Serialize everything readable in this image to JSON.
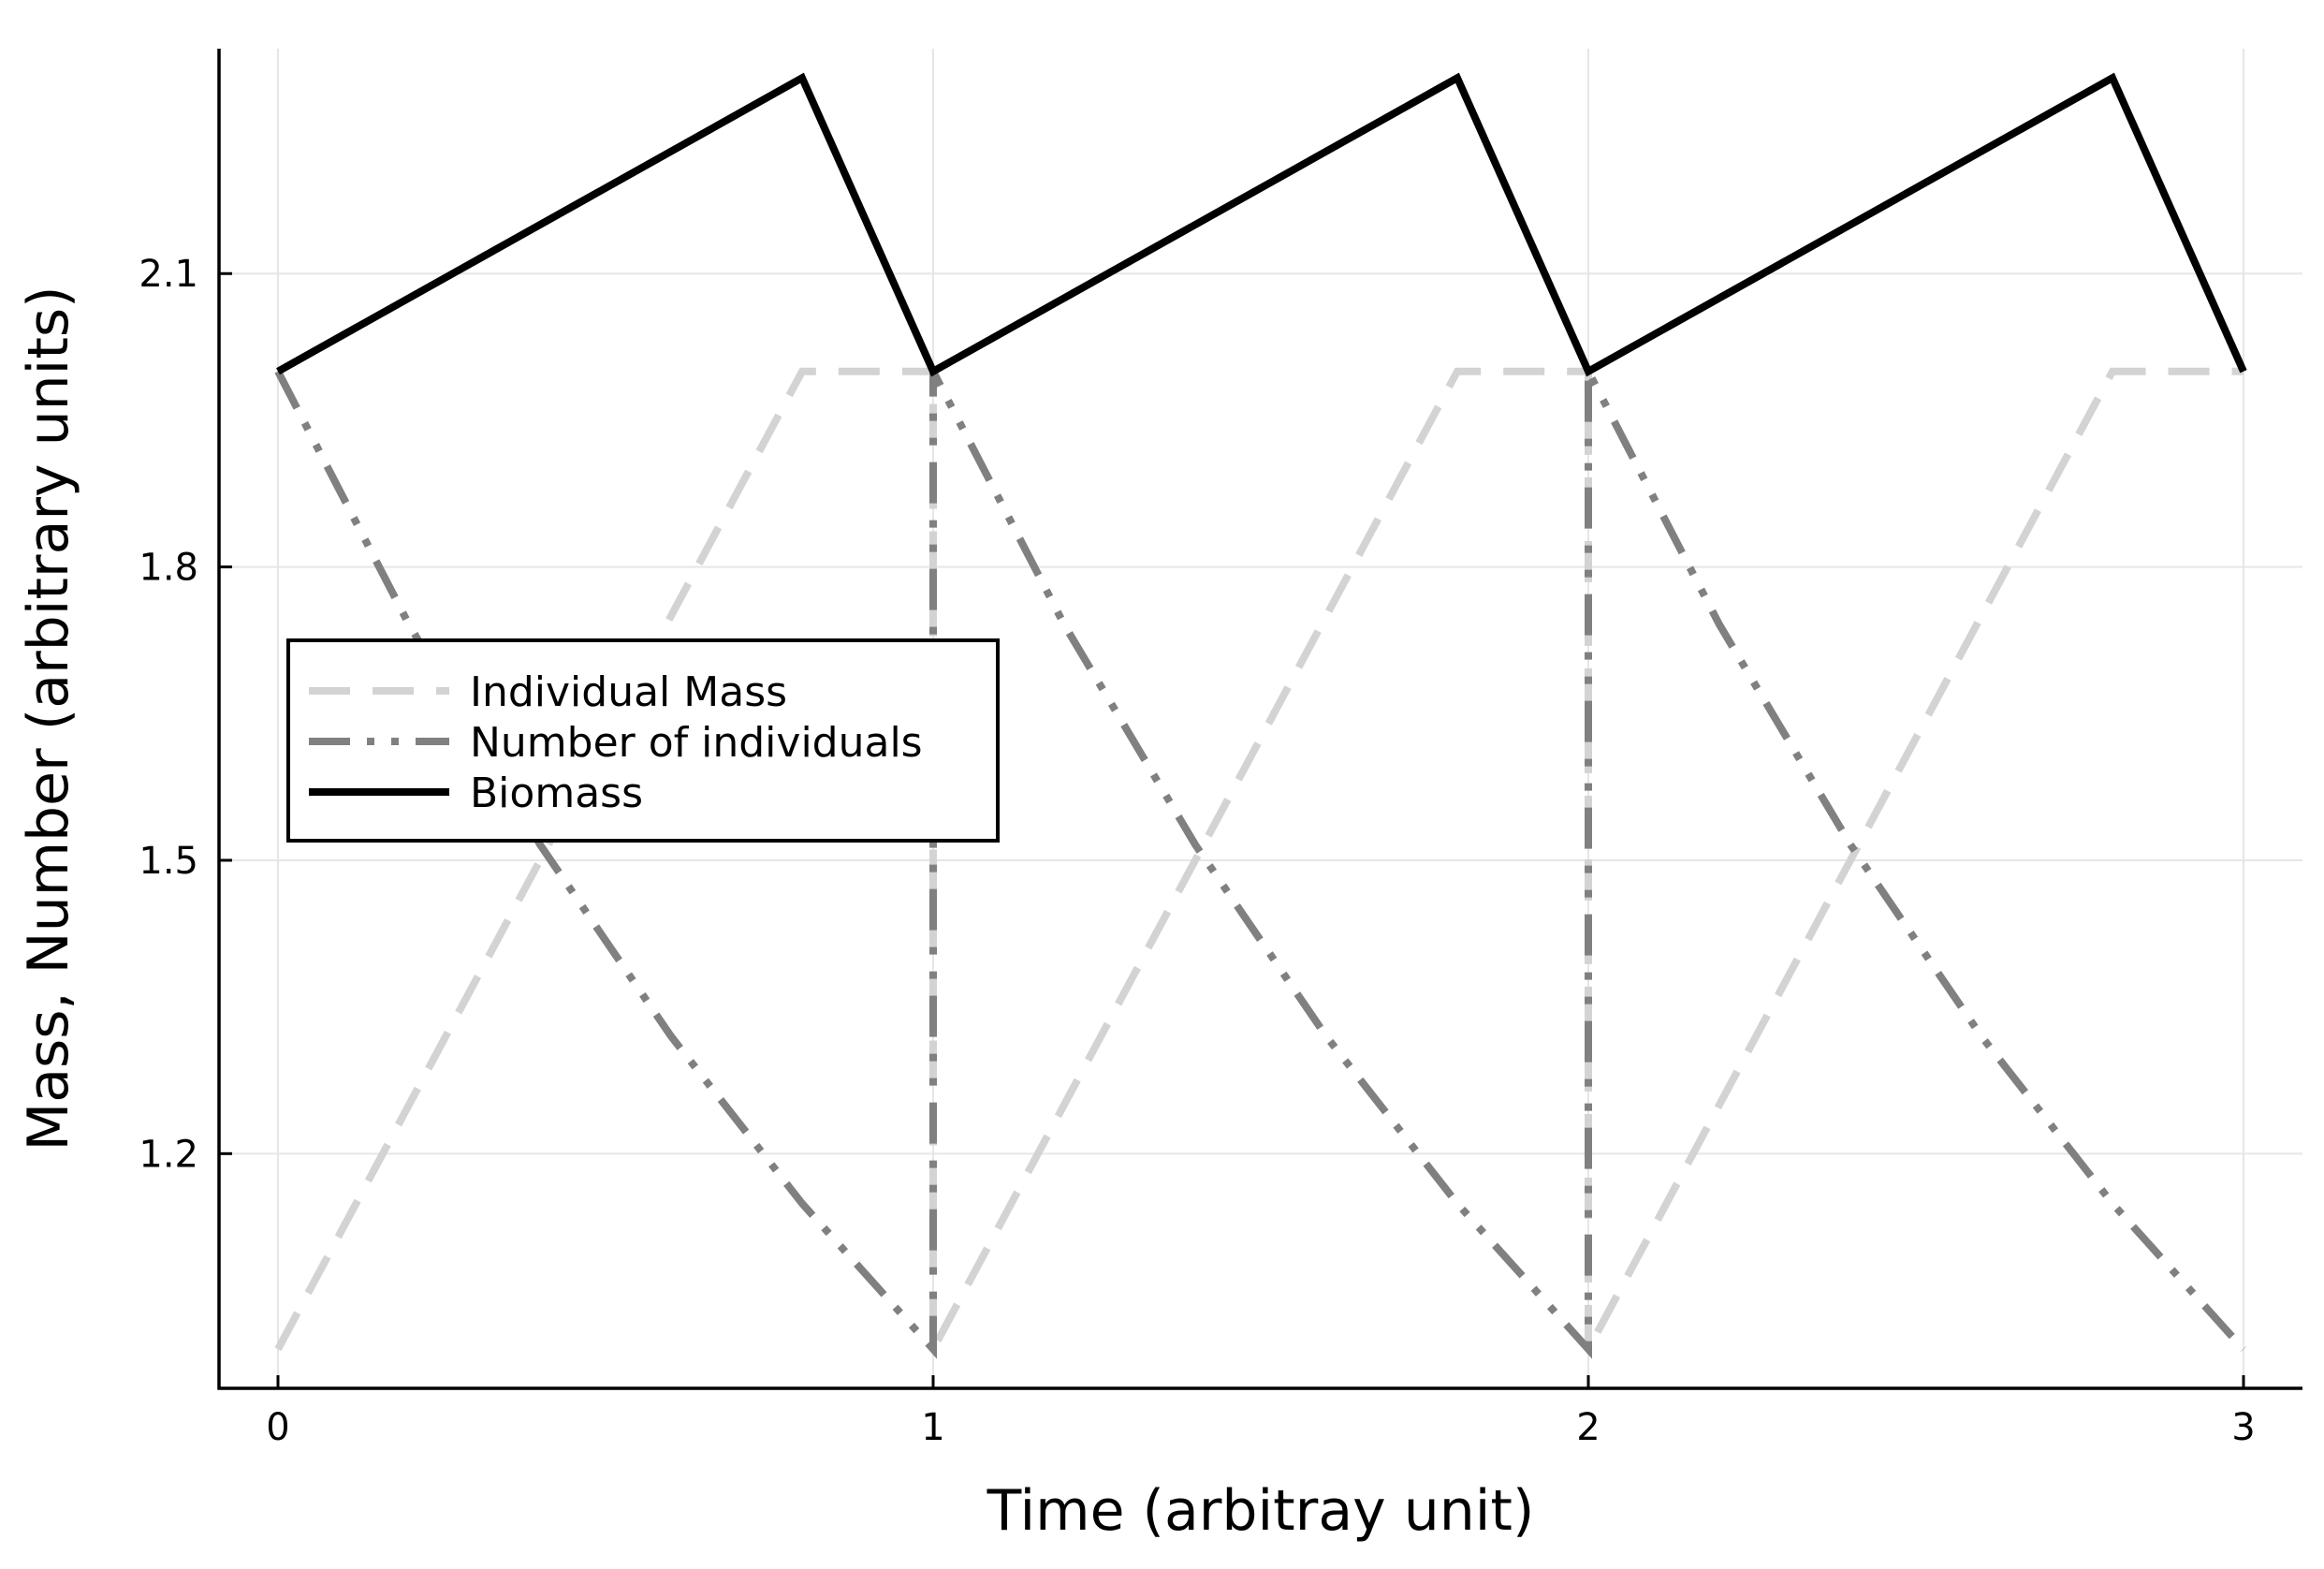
{
  "chart_data": {
    "type": "line",
    "xlabel": "Time (arbitray unit)",
    "ylabel": "Mass, Number (arbitrary units)",
    "xlim": [
      -0.09,
      3.09
    ],
    "ylim": [
      0.96,
      2.33
    ],
    "xticks": [
      0,
      1,
      2,
      3
    ],
    "xtick_labels": [
      "0",
      "1",
      "2",
      "3"
    ],
    "yticks": [
      1.2,
      1.5,
      1.8,
      2.1
    ],
    "ytick_labels": [
      "1.2",
      "1.5",
      "1.8",
      "2.1"
    ],
    "grid": true,
    "legend_position": "left-center",
    "series": [
      {
        "name": "Individual Mass",
        "style": "dash",
        "color": "#d3d3d3",
        "x": [
          0,
          0.8,
          1.0,
          1.0,
          1.8,
          2.0,
          2.0,
          2.8,
          3.0
        ],
        "y": [
          1.0,
          2.0,
          2.0,
          1.0,
          2.0,
          2.0,
          1.0,
          2.0,
          2.0
        ]
      },
      {
        "name": "Number of individuals",
        "style": "dashdotdot",
        "color": "#808080",
        "x": [
          0,
          0.2,
          0.4,
          0.6,
          0.8,
          1.0,
          1.0,
          1.2,
          1.4,
          1.6,
          1.8,
          2.0,
          2.0,
          2.2,
          2.4,
          2.6,
          2.8,
          3.0
        ],
        "y": [
          2.0,
          1.741,
          1.516,
          1.32,
          1.149,
          1.0,
          2.0,
          1.741,
          1.516,
          1.32,
          1.149,
          1.0,
          2.0,
          1.741,
          1.516,
          1.32,
          1.149,
          1.0
        ]
      },
      {
        "name": "Biomass",
        "style": "solid",
        "color": "#000000",
        "x": [
          0,
          0.8,
          1.0,
          1.8,
          2.0,
          2.8,
          3.0
        ],
        "y": [
          2.0,
          2.3,
          2.0,
          2.3,
          2.0,
          2.3,
          2.0
        ]
      }
    ]
  }
}
